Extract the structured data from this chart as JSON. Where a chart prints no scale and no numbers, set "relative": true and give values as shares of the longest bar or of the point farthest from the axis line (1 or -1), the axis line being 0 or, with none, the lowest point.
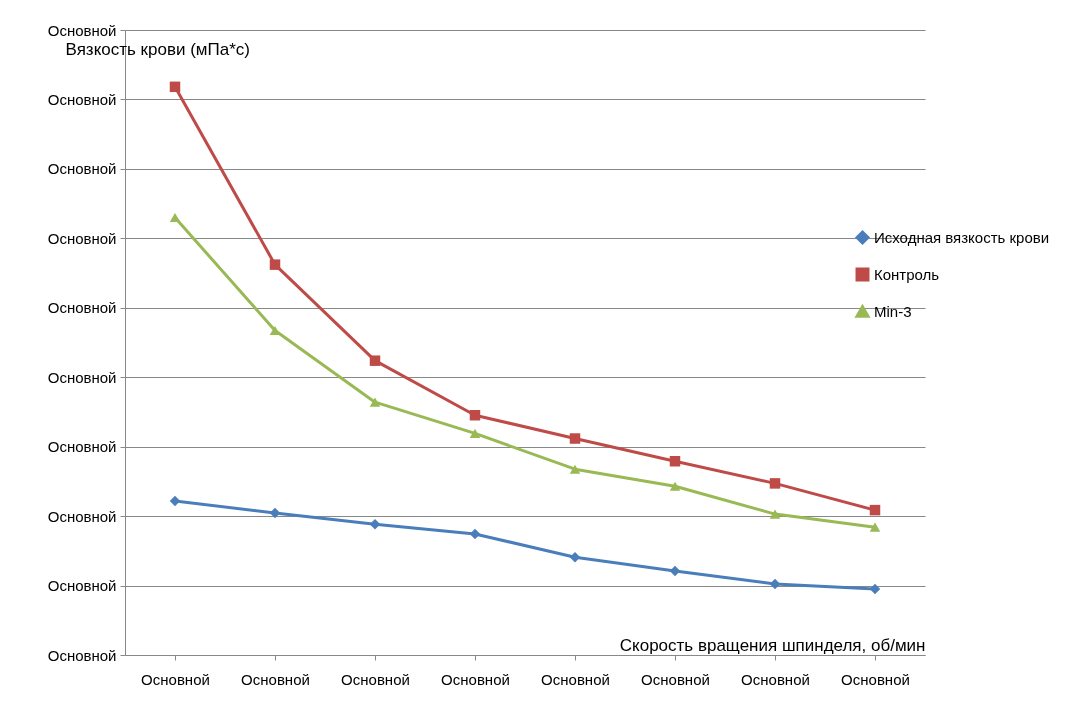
{
  "chart_data": {
    "type": "line",
    "relative": true,
    "xlabel": "Скорость вращения шпинделя, об/мин",
    "ylabel": "Вязкость крови (мПа*с)",
    "categories": [
      "Основной",
      "Основной",
      "Основной",
      "Основной",
      "Основной",
      "Основной",
      "Основной",
      "Основной"
    ],
    "annotations": [
      "Основной",
      "Основной",
      "Основной",
      "Основной",
      "Основной",
      "Основной",
      "Основной",
      "Основной",
      "Основной",
      "Основной"
    ],
    "grid": "y",
    "legend": "right",
    "series": [
      {
        "name": "Исходная вязкость крови",
        "color": "#4a7ebb",
        "marker": "diamond",
        "values": [
          0.271,
          0.25,
          0.23,
          0.213,
          0.172,
          0.148,
          0.125,
          0.116
        ]
      },
      {
        "name": "Контроль",
        "color": "#be4b48",
        "marker": "square",
        "values": [
          1,
          0.687,
          0.518,
          0.422,
          0.381,
          0.341,
          0.302,
          0.255
        ]
      },
      {
        "name": "Min-3",
        "color": "#98b954",
        "marker": "triangle",
        "values": [
          0.77,
          0.571,
          0.445,
          0.39,
          0.327,
          0.297,
          0.248,
          0.225
        ]
      }
    ]
  }
}
